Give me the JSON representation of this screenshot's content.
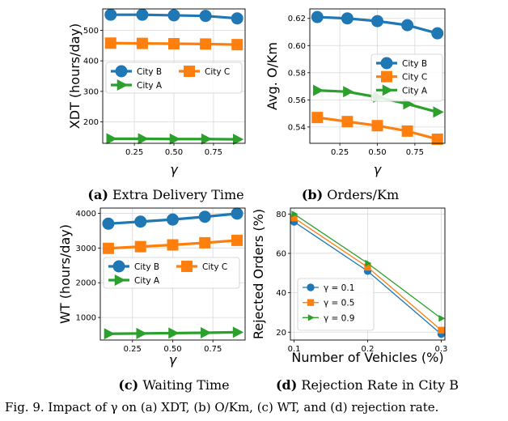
{
  "chart_data": [
    {
      "type": "line",
      "xlabel": "γ",
      "ylabel": "XDT (hours/day)",
      "x": [
        0.1,
        0.3,
        0.5,
        0.7,
        0.9
      ],
      "xticks": [
        0.25,
        0.5,
        0.75
      ],
      "xtick_labels": [
        "0.25",
        "0.50",
        "0.75"
      ],
      "xlim": [
        0.05,
        0.95
      ],
      "yticks": [
        200,
        300,
        400,
        500
      ],
      "ylim": [
        130,
        570
      ],
      "legend": "center, 2 columns",
      "series": [
        {
          "name": "City B",
          "color": "#1f77b4",
          "marker": "circle",
          "values": [
            551,
            551,
            549,
            547,
            539
          ]
        },
        {
          "name": "City C",
          "color": "#ff7f0e",
          "marker": "square",
          "values": [
            458,
            457,
            456,
            455,
            453
          ]
        },
        {
          "name": "City A",
          "color": "#2ca02c",
          "marker": "triangle-right",
          "values": [
            145,
            145,
            144,
            144,
            143
          ]
        }
      ],
      "sublabel": "(a)",
      "subtitle": "Extra Delivery Time"
    },
    {
      "type": "line",
      "xlabel": "γ",
      "ylabel": "Avg. O/Km",
      "x": [
        0.1,
        0.3,
        0.5,
        0.7,
        0.9
      ],
      "xticks": [
        0.25,
        0.5,
        0.75
      ],
      "xtick_labels": [
        "0.25",
        "0.50",
        "0.75"
      ],
      "xlim": [
        0.05,
        0.95
      ],
      "yticks": [
        0.54,
        0.56,
        0.58,
        0.6,
        0.62
      ],
      "ytick_labels": [
        "0.54",
        "0.56",
        "0.58",
        "0.60",
        "0.62"
      ],
      "ylim": [
        0.528,
        0.627
      ],
      "legend": "center-right",
      "series": [
        {
          "name": "City B",
          "color": "#1f77b4",
          "marker": "circle",
          "values": [
            0.621,
            0.62,
            0.618,
            0.615,
            0.609
          ]
        },
        {
          "name": "City C",
          "color": "#ff7f0e",
          "marker": "square",
          "values": [
            0.547,
            0.544,
            0.541,
            0.537,
            0.531
          ]
        },
        {
          "name": "City A",
          "color": "#2ca02c",
          "marker": "triangle-right",
          "values": [
            0.567,
            0.566,
            0.562,
            0.557,
            0.551
          ]
        }
      ],
      "sublabel": "(b)",
      "subtitle": "Orders/Km"
    },
    {
      "type": "line",
      "xlabel": "γ",
      "ylabel": "WT (hours/day)",
      "x": [
        0.1,
        0.3,
        0.5,
        0.7,
        0.9
      ],
      "xticks": [
        0.25,
        0.5,
        0.75
      ],
      "xtick_labels": [
        "0.25",
        "0.50",
        "0.75"
      ],
      "xlim": [
        0.05,
        0.95
      ],
      "yticks": [
        1000,
        2000,
        3000,
        4000
      ],
      "ylim": [
        350,
        4150
      ],
      "legend": "center, 2 columns",
      "series": [
        {
          "name": "City B",
          "color": "#1f77b4",
          "marker": "circle",
          "values": [
            3700,
            3760,
            3820,
            3900,
            3990
          ]
        },
        {
          "name": "City C",
          "color": "#ff7f0e",
          "marker": "square",
          "values": [
            2990,
            3040,
            3090,
            3150,
            3220
          ]
        },
        {
          "name": "City A",
          "color": "#2ca02c",
          "marker": "triangle-right",
          "values": [
            530,
            540,
            550,
            560,
            575
          ]
        }
      ],
      "sublabel": "(c)",
      "subtitle": "Waiting Time"
    },
    {
      "type": "line",
      "xlabel": "Number of Vehicles (%)",
      "ylabel": "Rejected Orders (%)",
      "x": [
        0.1,
        0.2,
        0.3
      ],
      "xticks": [
        0.1,
        0.2,
        0.3
      ],
      "xtick_labels": [
        "0.1",
        "0.2",
        "0.3"
      ],
      "xlim": [
        0.095,
        0.305
      ],
      "yticks": [
        20,
        40,
        60,
        80
      ],
      "ylim": [
        16,
        83
      ],
      "legend": "lower-left",
      "series": [
        {
          "name": "γ = 0.1",
          "color": "#1f77b4",
          "marker": "circle",
          "values": [
            76,
            51,
            19
          ]
        },
        {
          "name": "γ = 0.5",
          "color": "#ff7f0e",
          "marker": "square",
          "values": [
            78,
            53,
            21
          ]
        },
        {
          "name": "γ = 0.9",
          "color": "#2ca02c",
          "marker": "triangle-right",
          "values": [
            80,
            55,
            27
          ]
        }
      ],
      "sublabel": "(d)",
      "subtitle": "Rejection Rate in City B"
    }
  ],
  "caption": "Fig. 9.  Impact of γ on (a) XDT, (b) O/Km, (c) WT, and (d) rejection rate."
}
